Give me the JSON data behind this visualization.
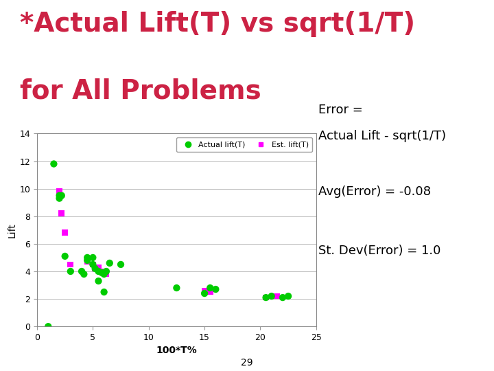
{
  "title_line1": "*Actual Lift(T) vs sqrt(1/T)",
  "title_line2": "for All Problems",
  "title_color": "#cc2244",
  "xlabel": "100*T%",
  "ylabel": "Lift",
  "xlim": [
    0,
    25
  ],
  "ylim": [
    0,
    14
  ],
  "xticks": [
    0,
    5,
    10,
    15,
    20,
    25
  ],
  "yticks": [
    0,
    2,
    4,
    6,
    8,
    10,
    12,
    14
  ],
  "actual_x": [
    1.0,
    1.5,
    2.0,
    2.0,
    2.2,
    2.5,
    3.0,
    4.0,
    4.2,
    4.5,
    4.5,
    5.0,
    5.0,
    5.2,
    5.5,
    5.5,
    5.8,
    6.0,
    6.0,
    6.2,
    6.5,
    7.5,
    12.5,
    15.0,
    15.5,
    16.0,
    20.5,
    21.0,
    22.0,
    22.5
  ],
  "actual_y": [
    0.0,
    11.8,
    9.3,
    9.5,
    9.5,
    5.1,
    4.0,
    4.0,
    3.8,
    5.0,
    4.8,
    5.0,
    4.5,
    4.2,
    4.0,
    3.3,
    3.9,
    3.8,
    2.5,
    4.0,
    4.6,
    4.5,
    2.8,
    2.4,
    2.8,
    2.7,
    2.1,
    2.2,
    2.1,
    2.2
  ],
  "actual_color": "#00cc00",
  "actual_marker": "o",
  "actual_size": 55,
  "est_x": [
    2.0,
    2.2,
    2.5,
    3.0,
    4.5,
    5.0,
    5.2,
    5.5,
    6.0,
    6.2,
    15.0,
    15.5,
    20.5,
    21.5
  ],
  "est_y": [
    9.8,
    8.2,
    6.8,
    4.5,
    4.7,
    4.5,
    4.2,
    4.3,
    4.0,
    3.8,
    2.6,
    2.5,
    2.1,
    2.2
  ],
  "est_color": "#ff00ff",
  "est_marker": "s",
  "est_size": 40,
  "legend_actual": "Actual lift(T)",
  "legend_est": "Est. lift(T)",
  "ann1_line1": "Error =",
  "ann1_line2": "Actual Lift - sqrt(1/T)",
  "ann2": "Avg(Error) = -0.08",
  "ann3": "St. Dev(Error) = 1.0",
  "page_number": "29",
  "bg_color": "#ffffff",
  "plot_bg_color": "#ffffff",
  "grid_color": "#bbbbbb",
  "grid_linewidth": 0.7,
  "axis_linecolor": "#888888",
  "title_fontsize": 28,
  "ann_fontsize": 13
}
